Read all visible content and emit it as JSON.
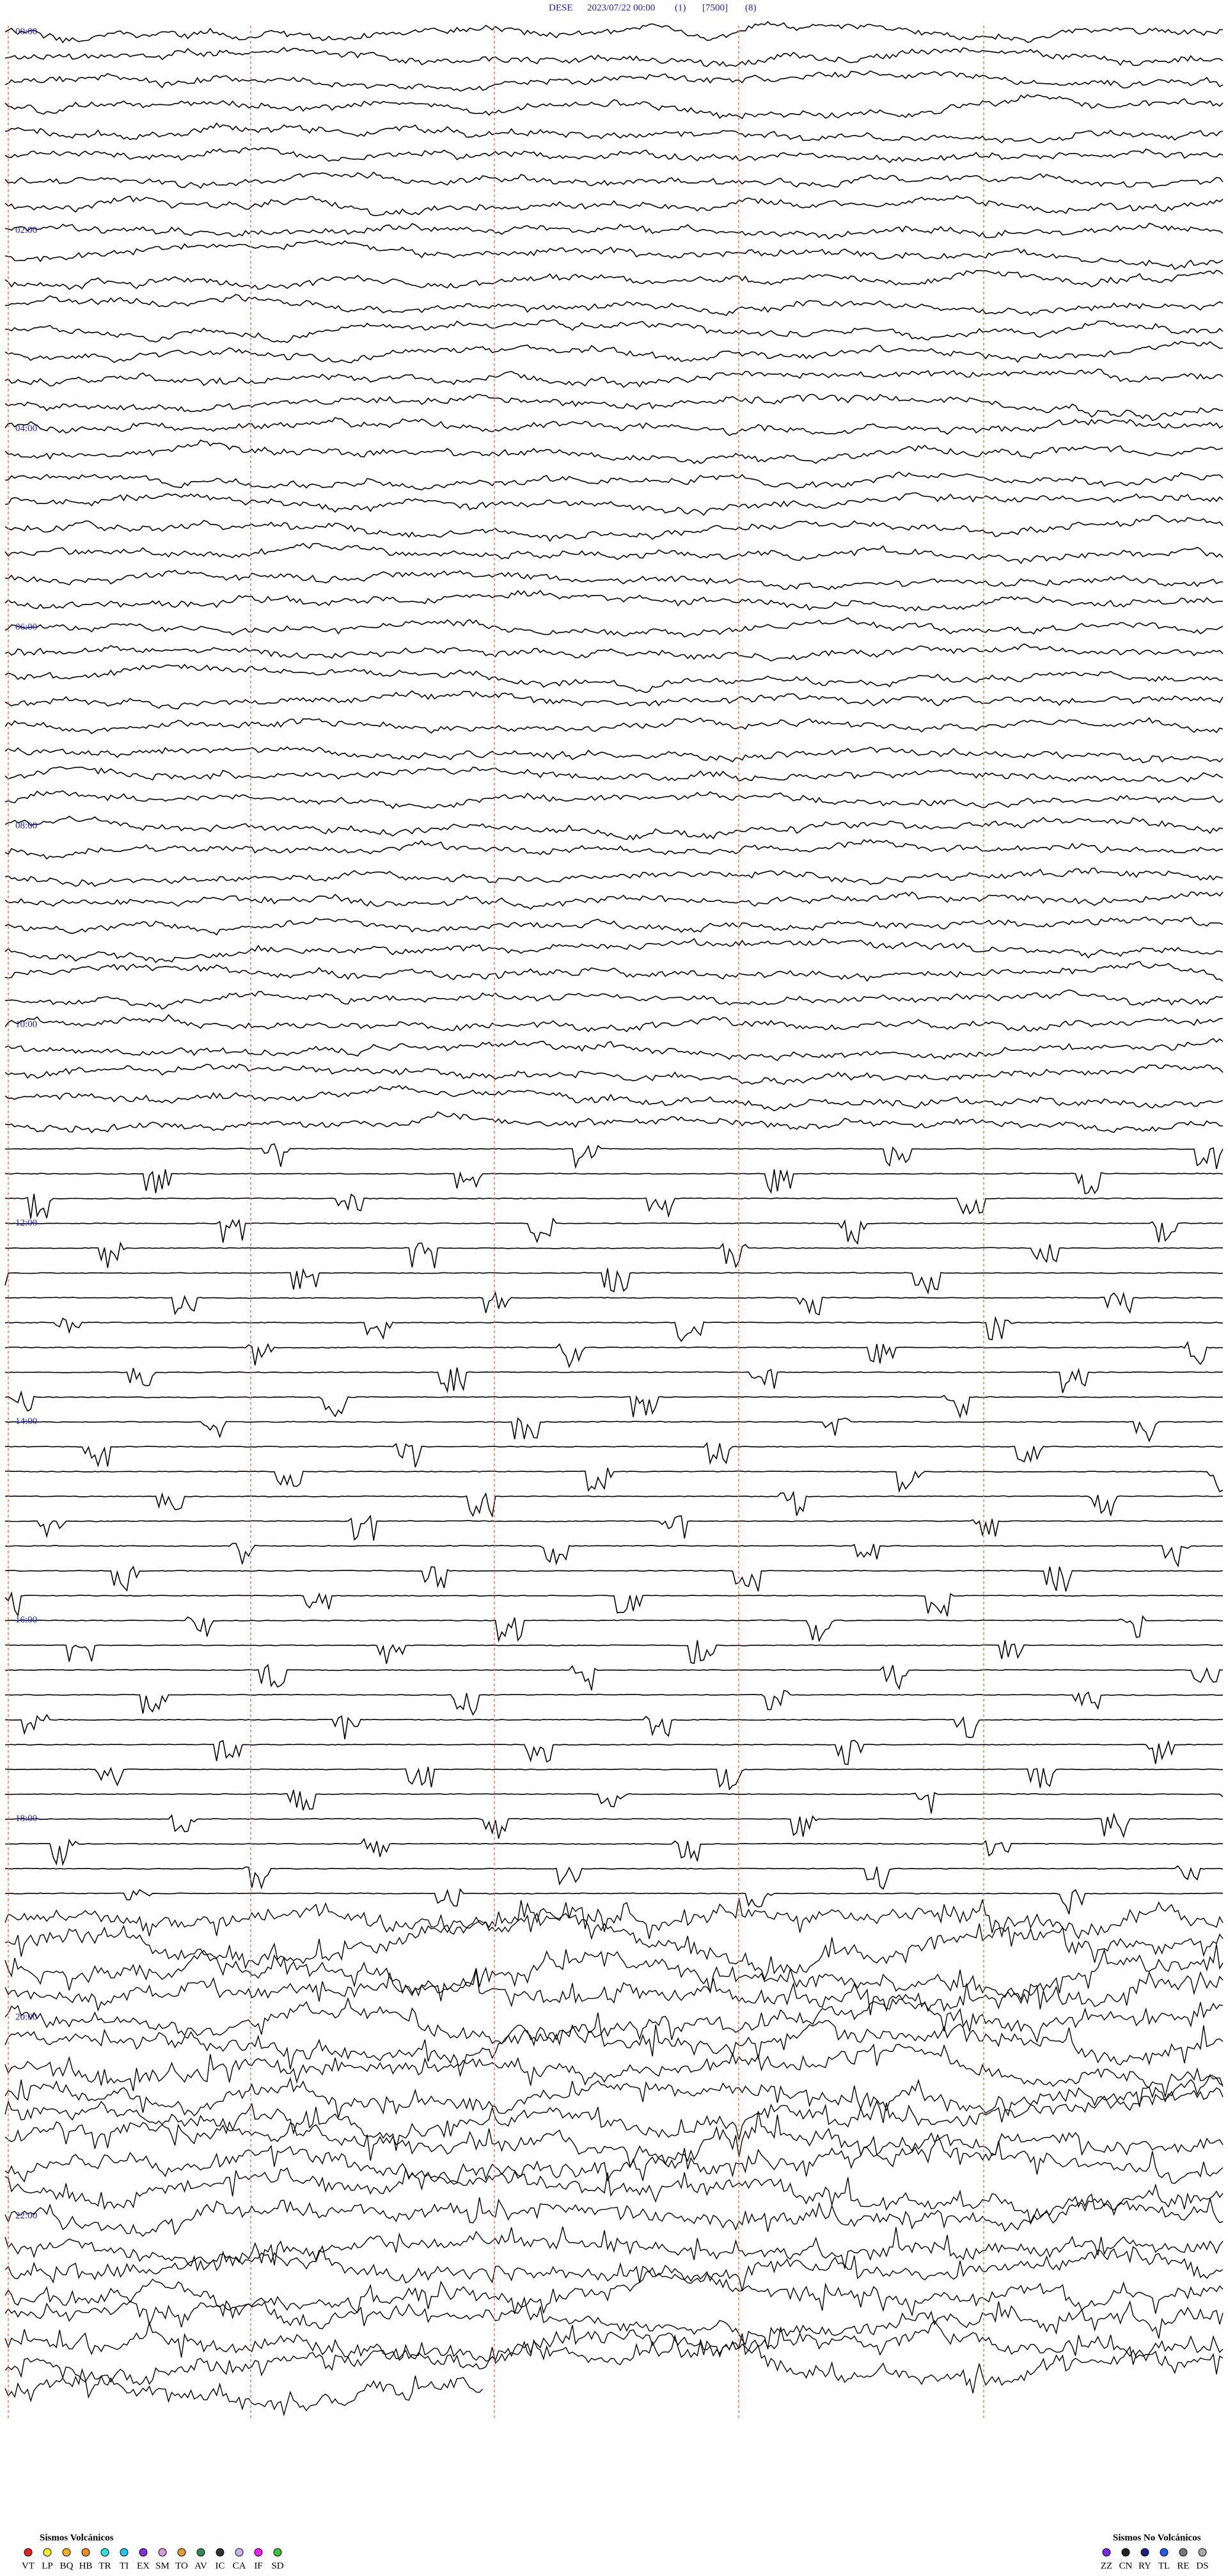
{
  "header": {
    "station": "DESE",
    "datetime": "2023/07/22 00:00",
    "channel": "(1)",
    "scale": "[7500]",
    "filter": "(8)"
  },
  "time_labels": [
    "00:00",
    "02:00",
    "04:00",
    "06:00",
    "08:00",
    "10:00",
    "12:00",
    "14:00",
    "16:00",
    "18:00",
    "20:00",
    "22:00"
  ],
  "legend": {
    "volcanic": {
      "title": "Sismos Volcánicos",
      "items": [
        {
          "label": "VT",
          "color": "#e8211d"
        },
        {
          "label": "LP",
          "color": "#f5f01e"
        },
        {
          "label": "BQ",
          "color": "#f5b21e"
        },
        {
          "label": "HB",
          "color": "#f58a1e"
        },
        {
          "label": "TR",
          "color": "#2ee0e0"
        },
        {
          "label": "TI",
          "color": "#1ec8f5"
        },
        {
          "label": "EX",
          "color": "#8a2be2"
        },
        {
          "label": "SM",
          "color": "#d89ad8"
        },
        {
          "label": "TO",
          "color": "#e89a3a"
        },
        {
          "label": "AV",
          "color": "#2e8b57"
        },
        {
          "label": "IC",
          "color": "#333333"
        },
        {
          "label": "CA",
          "color": "#c8b4e8"
        },
        {
          "label": "IF",
          "color": "#f01ef0"
        },
        {
          "label": "SD",
          "color": "#32c832"
        }
      ]
    },
    "non_volcanic": {
      "title": "Sismos No Volcánicos",
      "items": [
        {
          "label": "ZZ",
          "color": "#7a2be2"
        },
        {
          "label": "CN",
          "color": "#222222"
        },
        {
          "label": "RY",
          "color": "#1a237e"
        },
        {
          "label": "TL",
          "color": "#1e5af5"
        },
        {
          "label": "RE",
          "color": "#777777"
        },
        {
          "label": "DS",
          "color": "#aaaaaa"
        }
      ]
    }
  }
}
